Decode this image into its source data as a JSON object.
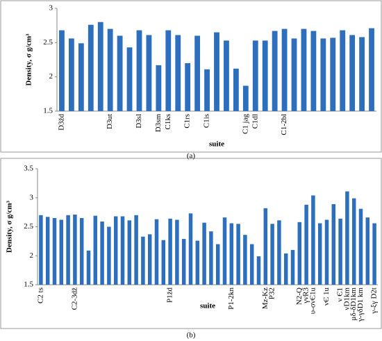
{
  "chart_data": [
    {
      "type": "bar",
      "caption": "(a)",
      "x_label": "suite",
      "y_label": "Density, σ g/cm³",
      "color": "#2e6fbd",
      "grid": false,
      "ylim": [
        1.5,
        3
      ],
      "yticks": [
        1.5,
        2,
        2.5,
        3
      ],
      "categories": [
        "D3žd",
        null,
        null,
        null,
        null,
        "D3ut",
        null,
        null,
        "D3sl",
        null,
        "D3sm",
        "C1ks",
        null,
        "C1rs",
        null,
        "C1is",
        null,
        null,
        null,
        "C1 jag",
        "C1dl",
        null,
        null,
        "C1-2bl",
        null,
        null,
        null,
        null,
        null,
        null,
        null,
        null,
        null
      ],
      "values": [
        2.68,
        2.56,
        2.49,
        2.76,
        2.8,
        2.7,
        2.6,
        2.43,
        2.68,
        2.61,
        2.17,
        2.68,
        2.61,
        2.2,
        2.6,
        2.11,
        2.65,
        2.53,
        2.12,
        1.87,
        2.53,
        2.53,
        2.67,
        2.7,
        2.56,
        2.7,
        2.67,
        2.56,
        2.57,
        2.68,
        2.61,
        2.58,
        2.71
      ]
    },
    {
      "type": "bar",
      "caption": "(b)",
      "x_label": "suite",
      "y_label": "Density, σ g/cm³",
      "color": "#2e6fbd",
      "grid": false,
      "ylim": [
        1.5,
        3.5
      ],
      "yticks": [
        1.5,
        2,
        2.5,
        3,
        3.5
      ],
      "categories": [
        "C2 ts",
        null,
        null,
        null,
        null,
        "C2-3dž",
        null,
        null,
        null,
        null,
        null,
        null,
        null,
        null,
        null,
        null,
        null,
        null,
        null,
        "P1žd",
        null,
        null,
        null,
        null,
        null,
        null,
        null,
        null,
        "P1-2kn",
        null,
        null,
        null,
        null,
        "Mz-Kz",
        "P32",
        null,
        null,
        null,
        "N2-Q",
        "γνR3",
        "υ-σνЄ1u",
        null,
        "νЄ 1u",
        null,
        "ν Є1",
        "νD1km",
        "μδ-δD1km",
        "γ-γδD1 km",
        null,
        "γ-ξγ D2t"
      ],
      "values": [
        2.7,
        2.67,
        2.65,
        2.62,
        2.7,
        2.71,
        2.65,
        2.09,
        2.69,
        2.59,
        2.5,
        2.68,
        2.68,
        2.61,
        2.7,
        2.33,
        2.37,
        2.63,
        2.27,
        2.64,
        2.62,
        2.29,
        2.73,
        2.26,
        2.57,
        2.42,
        2.2,
        2.66,
        2.56,
        2.55,
        2.36,
        2.2,
        1.99,
        2.82,
        2.55,
        2.61,
        2.04,
        2.1,
        2.58,
        2.88,
        3.04,
        2.56,
        2.62,
        2.89,
        2.64,
        3.11,
        2.99,
        2.81,
        2.66,
        2.56
      ]
    }
  ]
}
